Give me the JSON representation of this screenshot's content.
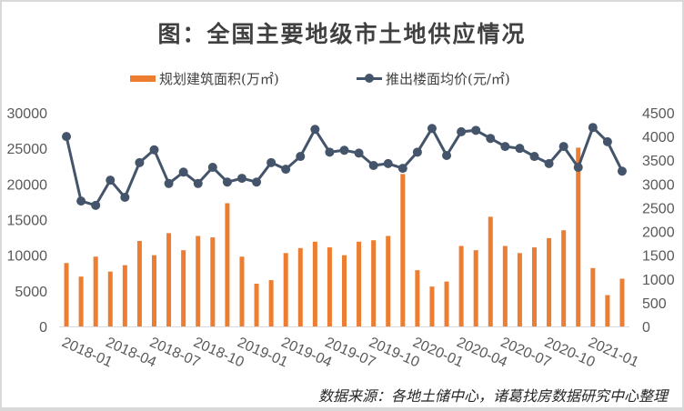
{
  "title": "图：全国主要地级市土地供应情况",
  "legend": {
    "bar_label": "规划建筑面积(万㎡)",
    "line_label": "推出楼面均价(元/㎡)"
  },
  "source": "数据来源：各地土储中心，诸葛找房数据研究中心整理",
  "colors": {
    "bar": "#ED7D31",
    "line": "#44546A",
    "axis_text": "#595959",
    "axis_line": "#D9D9D9"
  },
  "chart_data": {
    "type": "bar+line",
    "title": "图：全国主要地级市土地供应情况",
    "xlabel": "",
    "ylabel": "规划建筑面积(万㎡)",
    "y2label": "推出楼面均价(元/㎡)",
    "ylim": [
      0,
      30000
    ],
    "y2lim": [
      0,
      4500
    ],
    "yticks": [
      0,
      5000,
      10000,
      15000,
      20000,
      25000,
      30000
    ],
    "y2ticks": [
      0,
      500,
      1000,
      1500,
      2000,
      2500,
      3000,
      3500,
      4000,
      4500
    ],
    "grid": false,
    "legend_position": "top",
    "categories": [
      "2018-01",
      "2018-02",
      "2018-03",
      "2018-04",
      "2018-05",
      "2018-06",
      "2018-07",
      "2018-08",
      "2018-09",
      "2018-10",
      "2018-11",
      "2018-12",
      "2019-01",
      "2019-02",
      "2019-03",
      "2019-04",
      "2019-05",
      "2019-06",
      "2019-07",
      "2019-08",
      "2019-09",
      "2019-10",
      "2019-11",
      "2019-12",
      "2020-01",
      "2020-02",
      "2020-03",
      "2020-04",
      "2020-05",
      "2020-06",
      "2020-07",
      "2020-08",
      "2020-09",
      "2020-10",
      "2020-11",
      "2020-12",
      "2021-01",
      "2021-02",
      "2021-03"
    ],
    "xtick_labels": [
      "2018-01",
      "2018-04",
      "2018-07",
      "2018-10",
      "2019-01",
      "2019-04",
      "2019-07",
      "2019-10",
      "2020-01",
      "2020-04",
      "2020-07",
      "2020-10",
      "2021-01"
    ],
    "series": [
      {
        "name": "规划建筑面积(万㎡)",
        "type": "bar",
        "axis": "left",
        "values": [
          8900,
          7000,
          9800,
          7700,
          8600,
          12000,
          10000,
          13100,
          10700,
          12700,
          12500,
          17300,
          9800,
          6000,
          6500,
          10300,
          11000,
          11900,
          11100,
          10000,
          11900,
          12100,
          12700,
          21400,
          7900,
          5600,
          6300,
          11300,
          10700,
          15400,
          11300,
          10300,
          11100,
          12400,
          13500,
          25100,
          8200,
          4400,
          6700
        ]
      },
      {
        "name": "推出楼面均价(元/㎡)",
        "type": "line",
        "axis": "right",
        "values": [
          4000,
          2640,
          2550,
          3080,
          2720,
          3450,
          3720,
          3010,
          3250,
          3010,
          3350,
          3040,
          3120,
          3040,
          3450,
          3310,
          3580,
          4150,
          3670,
          3710,
          3650,
          3390,
          3430,
          3330,
          3670,
          4170,
          3600,
          4100,
          4130,
          3960,
          3790,
          3750,
          3580,
          3430,
          3790,
          3350,
          4190,
          3890,
          3270
        ]
      }
    ]
  }
}
